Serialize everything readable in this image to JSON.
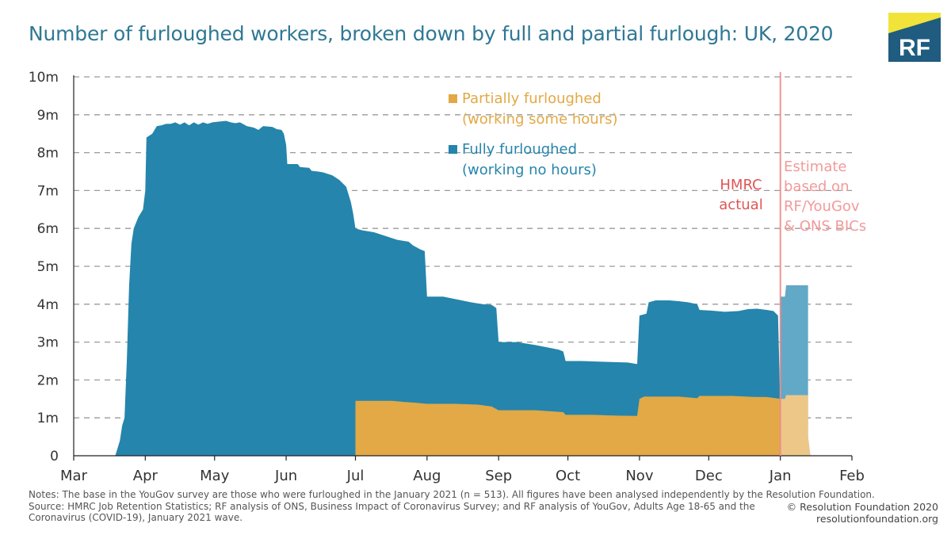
{
  "title": "Number of furloughed workers, broken down by full and partial furlough: UK, 2020",
  "logo": {
    "text": "RF",
    "colors": {
      "navy": "#1f5c80",
      "yellow": "#f1e33a"
    }
  },
  "notes": {
    "line1": "Notes: The base in the YouGov survey are those who were furloughed in the January 2021 (n = 513). All figures have been analysed independently by the Resolution Foundation.",
    "line2": "Source: HMRC Job Retention Statistics; RF analysis of ONS, Business Impact of Coronavirus Survey; and RF analysis of YouGov, Adults Age 18-65 and the",
    "line3": "Coronavirus (COVID-19), January 2021 wave."
  },
  "credit": {
    "line1": "© Resolution Foundation 2020",
    "line2": "resolutionfoundation.org"
  },
  "chart_data": {
    "type": "area",
    "stacked": true,
    "ylim": [
      0,
      10
    ],
    "yticks": [
      {
        "v": 0,
        "label": "0"
      },
      {
        "v": 1,
        "label": "1m"
      },
      {
        "v": 2,
        "label": "2m"
      },
      {
        "v": 3,
        "label": "3m"
      },
      {
        "v": 4,
        "label": "4m"
      },
      {
        "v": 5,
        "label": "5m"
      },
      {
        "v": 6,
        "label": "6m"
      },
      {
        "v": 7,
        "label": "7m"
      },
      {
        "v": 8,
        "label": "8m"
      },
      {
        "v": 9,
        "label": "9m"
      },
      {
        "v": 10,
        "label": "10m"
      }
    ],
    "xticks": [
      {
        "v": 0,
        "label": "Mar"
      },
      {
        "v": 31,
        "label": "Apr"
      },
      {
        "v": 61,
        "label": "May"
      },
      {
        "v": 92,
        "label": "Jun"
      },
      {
        "v": 122,
        "label": "Jul"
      },
      {
        "v": 153,
        "label": "Aug"
      },
      {
        "v": 184,
        "label": "Sep"
      },
      {
        "v": 214,
        "label": "Oct"
      },
      {
        "v": 245,
        "label": "Nov"
      },
      {
        "v": 275,
        "label": "Dec"
      },
      {
        "v": 306,
        "label": "Jan"
      },
      {
        "v": 337,
        "label": "Feb"
      }
    ],
    "xlim": [
      0,
      337
    ],
    "grid": "horizontal-dashed",
    "legend_position": "top-center",
    "series": [
      {
        "name": "Fully furloughed\n(working no hours)",
        "legend": [
          "Fully furloughed",
          "(working no hours)"
        ],
        "color": "#2585ac",
        "values_total": [
          [
            0,
            0
          ],
          [
            18,
            0
          ],
          [
            20,
            0.4
          ],
          [
            21,
            0.8
          ],
          [
            22,
            1.0
          ],
          [
            23,
            2.5
          ],
          [
            24,
            4.5
          ],
          [
            25,
            5.6
          ],
          [
            26,
            6.0
          ],
          [
            28,
            6.3
          ],
          [
            30,
            6.5
          ],
          [
            31,
            7.0
          ],
          [
            31.5,
            8.4
          ],
          [
            34,
            8.5
          ],
          [
            36,
            8.7
          ],
          [
            38,
            8.72
          ],
          [
            40,
            8.76
          ],
          [
            42,
            8.76
          ],
          [
            44,
            8.8
          ],
          [
            46,
            8.74
          ],
          [
            48,
            8.8
          ],
          [
            50,
            8.72
          ],
          [
            52,
            8.8
          ],
          [
            54,
            8.74
          ],
          [
            56,
            8.8
          ],
          [
            58,
            8.76
          ],
          [
            60,
            8.8
          ],
          [
            63,
            8.82
          ],
          [
            66,
            8.84
          ],
          [
            68,
            8.8
          ],
          [
            70,
            8.78
          ],
          [
            72,
            8.8
          ],
          [
            75,
            8.7
          ],
          [
            78,
            8.66
          ],
          [
            80,
            8.6
          ],
          [
            82,
            8.7
          ],
          [
            86,
            8.68
          ],
          [
            88,
            8.62
          ],
          [
            90,
            8.6
          ],
          [
            91,
            8.5
          ],
          [
            92,
            8.2
          ],
          [
            92.5,
            7.7
          ],
          [
            97,
            7.7
          ],
          [
            98,
            7.62
          ],
          [
            102,
            7.6
          ],
          [
            103,
            7.52
          ],
          [
            106,
            7.5
          ],
          [
            108,
            7.48
          ],
          [
            112,
            7.4
          ],
          [
            115,
            7.28
          ],
          [
            118,
            7.1
          ],
          [
            120,
            6.7
          ],
          [
            121,
            6.4
          ],
          [
            122,
            6.0
          ],
          [
            125,
            5.95
          ],
          [
            130,
            5.9
          ],
          [
            135,
            5.8
          ],
          [
            140,
            5.7
          ],
          [
            145,
            5.65
          ],
          [
            147,
            5.55
          ],
          [
            150,
            5.45
          ],
          [
            152,
            5.4
          ],
          [
            153,
            4.2
          ],
          [
            160,
            4.2
          ],
          [
            164,
            4.15
          ],
          [
            168,
            4.1
          ],
          [
            172,
            4.05
          ],
          [
            177,
            4.0
          ],
          [
            181,
            3.98
          ],
          [
            183,
            3.9
          ],
          [
            184,
            3.0
          ],
          [
            192,
            3.0
          ],
          [
            196,
            2.96
          ],
          [
            200,
            2.92
          ],
          [
            205,
            2.86
          ],
          [
            210,
            2.8
          ],
          [
            212,
            2.75
          ],
          [
            213,
            2.5
          ],
          [
            220,
            2.5
          ],
          [
            230,
            2.48
          ],
          [
            240,
            2.46
          ],
          [
            244,
            2.42
          ],
          [
            245,
            3.7
          ],
          [
            248,
            3.75
          ],
          [
            249,
            4.05
          ],
          [
            252,
            4.1
          ],
          [
            258,
            4.1
          ],
          [
            262,
            4.08
          ],
          [
            266,
            4.05
          ],
          [
            270,
            4.0
          ],
          [
            271,
            3.85
          ],
          [
            276,
            3.83
          ],
          [
            282,
            3.8
          ],
          [
            288,
            3.82
          ],
          [
            292,
            3.87
          ],
          [
            296,
            3.88
          ],
          [
            300,
            3.85
          ],
          [
            303,
            3.82
          ],
          [
            305,
            3.7
          ],
          [
            306,
            1.25
          ]
        ],
        "estimate_color": "#61a9c7",
        "estimate_total": [
          [
            306,
            4.2
          ],
          [
            308,
            4.2
          ],
          [
            308.5,
            4.5
          ],
          [
            318,
            4.5
          ],
          [
            318,
            0.5
          ],
          [
            319,
            0
          ]
        ]
      },
      {
        "name": "Partially furloughed\n(working some hours)",
        "legend": [
          "Partially furloughed",
          "(working some hours)"
        ],
        "color": "#e2a946",
        "values": [
          [
            122,
            0
          ],
          [
            122,
            1.45
          ],
          [
            130,
            1.45
          ],
          [
            138,
            1.45
          ],
          [
            143,
            1.42
          ],
          [
            148,
            1.4
          ],
          [
            153,
            1.37
          ],
          [
            165,
            1.37
          ],
          [
            175,
            1.35
          ],
          [
            181,
            1.3
          ],
          [
            184,
            1.2
          ],
          [
            200,
            1.2
          ],
          [
            205,
            1.18
          ],
          [
            212,
            1.15
          ],
          [
            213,
            1.08
          ],
          [
            225,
            1.08
          ],
          [
            235,
            1.06
          ],
          [
            244,
            1.05
          ],
          [
            245,
            1.5
          ],
          [
            247,
            1.56
          ],
          [
            262,
            1.56
          ],
          [
            270,
            1.52
          ],
          [
            271,
            1.58
          ],
          [
            285,
            1.58
          ],
          [
            295,
            1.55
          ],
          [
            300,
            1.55
          ],
          [
            304,
            1.52
          ],
          [
            306,
            1.5
          ]
        ],
        "estimate_color": "#edc787",
        "estimate": [
          [
            306,
            1.5
          ],
          [
            308,
            1.5
          ],
          [
            308.5,
            1.6
          ],
          [
            318,
            1.6
          ],
          [
            318,
            0.5
          ],
          [
            319,
            0
          ]
        ]
      }
    ],
    "divider": {
      "x": 306,
      "color": "#f08a8a"
    },
    "annotations": [
      {
        "lines": [
          "HMRC",
          "actual"
        ],
        "color": "#e05555"
      },
      {
        "lines": [
          "Estimate",
          "based on",
          "RF/YouGov",
          "& ONS BICs"
        ],
        "color": "#f29a9a"
      }
    ]
  }
}
